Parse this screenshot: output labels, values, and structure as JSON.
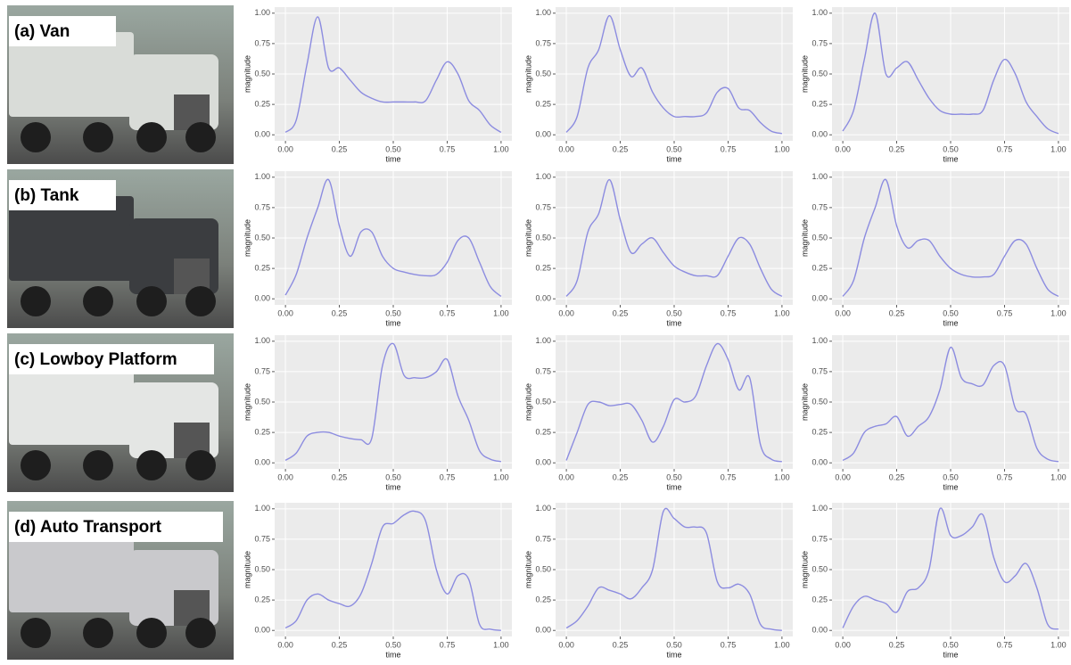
{
  "row_labels": [
    "(a) Van",
    "(b) Tank",
    "(c) Lowboy Platform",
    "(d) Auto Transport"
  ],
  "chart_data": [
    {
      "type": "line",
      "xlabel": "time",
      "ylabel": "magnitude",
      "color": "#8c8ce0",
      "xlim": [
        -0.05,
        1.05
      ],
      "ylim": [
        -0.05,
        1.05
      ],
      "xticks": [
        {
          "value": 0,
          "label": "0.00"
        },
        {
          "value": 0.25,
          "label": "0.25"
        },
        {
          "value": 0.5,
          "label": "0.50"
        },
        {
          "value": 0.75,
          "label": "0.75"
        },
        {
          "value": 1,
          "label": "1.00"
        }
      ],
      "yticks": [
        {
          "value": 0,
          "label": "0.00"
        },
        {
          "value": 0.25,
          "label": "0.25"
        },
        {
          "value": 0.5,
          "label": "0.50"
        },
        {
          "value": 0.75,
          "label": "0.75"
        },
        {
          "value": 1,
          "label": "1.00"
        }
      ],
      "x": [
        0,
        0.05,
        0.1,
        0.15,
        0.2,
        0.25,
        0.3,
        0.35,
        0.4,
        0.45,
        0.5,
        0.55,
        0.6,
        0.65,
        0.7,
        0.75,
        0.8,
        0.85,
        0.9,
        0.95,
        1
      ],
      "values": [
        0.02,
        0.12,
        0.58,
        0.97,
        0.55,
        0.55,
        0.45,
        0.35,
        0.3,
        0.27,
        0.27,
        0.27,
        0.27,
        0.28,
        0.45,
        0.6,
        0.5,
        0.28,
        0.2,
        0.08,
        0.02
      ]
    },
    {
      "type": "line",
      "xlabel": "time",
      "ylabel": "magnitude",
      "color": "#8c8ce0",
      "xlim": [
        -0.05,
        1.05
      ],
      "ylim": [
        -0.05,
        1.05
      ],
      "xticks": [
        {
          "value": 0,
          "label": "0.00"
        },
        {
          "value": 0.25,
          "label": "0.25"
        },
        {
          "value": 0.5,
          "label": "0.50"
        },
        {
          "value": 0.75,
          "label": "0.75"
        },
        {
          "value": 1,
          "label": "1.00"
        }
      ],
      "yticks": [
        {
          "value": 0,
          "label": "0.00"
        },
        {
          "value": 0.25,
          "label": "0.25"
        },
        {
          "value": 0.5,
          "label": "0.50"
        },
        {
          "value": 0.75,
          "label": "0.75"
        },
        {
          "value": 1,
          "label": "1.00"
        }
      ],
      "x": [
        0,
        0.05,
        0.1,
        0.15,
        0.2,
        0.25,
        0.3,
        0.35,
        0.4,
        0.45,
        0.5,
        0.55,
        0.6,
        0.65,
        0.7,
        0.75,
        0.8,
        0.85,
        0.9,
        0.95,
        1
      ],
      "values": [
        0.02,
        0.15,
        0.55,
        0.7,
        0.98,
        0.7,
        0.48,
        0.55,
        0.35,
        0.22,
        0.15,
        0.15,
        0.15,
        0.18,
        0.35,
        0.38,
        0.22,
        0.2,
        0.1,
        0.03,
        0.01
      ]
    },
    {
      "type": "line",
      "xlabel": "time",
      "ylabel": "magnitude",
      "color": "#8c8ce0",
      "xlim": [
        -0.05,
        1.05
      ],
      "ylim": [
        -0.05,
        1.05
      ],
      "xticks": [
        {
          "value": 0,
          "label": "0.00"
        },
        {
          "value": 0.25,
          "label": "0.25"
        },
        {
          "value": 0.5,
          "label": "0.50"
        },
        {
          "value": 0.75,
          "label": "0.75"
        },
        {
          "value": 1,
          "label": "1.00"
        }
      ],
      "yticks": [
        {
          "value": 0,
          "label": "0.00"
        },
        {
          "value": 0.25,
          "label": "0.25"
        },
        {
          "value": 0.5,
          "label": "0.50"
        },
        {
          "value": 0.75,
          "label": "0.75"
        },
        {
          "value": 1,
          "label": "1.00"
        }
      ],
      "x": [
        0,
        0.05,
        0.1,
        0.15,
        0.2,
        0.25,
        0.3,
        0.35,
        0.4,
        0.45,
        0.5,
        0.55,
        0.6,
        0.65,
        0.7,
        0.75,
        0.8,
        0.85,
        0.9,
        0.95,
        1
      ],
      "values": [
        0.03,
        0.2,
        0.62,
        1.0,
        0.5,
        0.55,
        0.6,
        0.45,
        0.3,
        0.2,
        0.17,
        0.17,
        0.17,
        0.2,
        0.45,
        0.62,
        0.5,
        0.27,
        0.15,
        0.05,
        0.01
      ]
    },
    {
      "type": "line",
      "xlabel": "time",
      "ylabel": "magnitude",
      "color": "#8c8ce0",
      "xlim": [
        -0.05,
        1.05
      ],
      "ylim": [
        -0.05,
        1.05
      ],
      "xticks": [
        {
          "value": 0,
          "label": "0.00"
        },
        {
          "value": 0.25,
          "label": "0.25"
        },
        {
          "value": 0.5,
          "label": "0.50"
        },
        {
          "value": 0.75,
          "label": "0.75"
        },
        {
          "value": 1,
          "label": "1.00"
        }
      ],
      "yticks": [
        {
          "value": 0,
          "label": "0.00"
        },
        {
          "value": 0.25,
          "label": "0.25"
        },
        {
          "value": 0.5,
          "label": "0.50"
        },
        {
          "value": 0.75,
          "label": "0.75"
        },
        {
          "value": 1,
          "label": "1.00"
        }
      ],
      "x": [
        0,
        0.05,
        0.1,
        0.15,
        0.2,
        0.25,
        0.3,
        0.35,
        0.4,
        0.45,
        0.5,
        0.55,
        0.6,
        0.65,
        0.7,
        0.75,
        0.8,
        0.85,
        0.9,
        0.95,
        1
      ],
      "values": [
        0.03,
        0.2,
        0.5,
        0.75,
        0.98,
        0.6,
        0.35,
        0.55,
        0.55,
        0.35,
        0.25,
        0.22,
        0.2,
        0.19,
        0.2,
        0.3,
        0.48,
        0.5,
        0.3,
        0.1,
        0.02
      ]
    },
    {
      "type": "line",
      "xlabel": "time",
      "ylabel": "magnitude",
      "color": "#8c8ce0",
      "xlim": [
        -0.05,
        1.05
      ],
      "ylim": [
        -0.05,
        1.05
      ],
      "xticks": [
        {
          "value": 0,
          "label": "0.00"
        },
        {
          "value": 0.25,
          "label": "0.25"
        },
        {
          "value": 0.5,
          "label": "0.50"
        },
        {
          "value": 0.75,
          "label": "0.75"
        },
        {
          "value": 1,
          "label": "1.00"
        }
      ],
      "yticks": [
        {
          "value": 0,
          "label": "0.00"
        },
        {
          "value": 0.25,
          "label": "0.25"
        },
        {
          "value": 0.5,
          "label": "0.50"
        },
        {
          "value": 0.75,
          "label": "0.75"
        },
        {
          "value": 1,
          "label": "1.00"
        }
      ],
      "x": [
        0,
        0.05,
        0.1,
        0.15,
        0.2,
        0.25,
        0.3,
        0.35,
        0.4,
        0.45,
        0.5,
        0.55,
        0.6,
        0.65,
        0.7,
        0.75,
        0.8,
        0.85,
        0.9,
        0.95,
        1
      ],
      "values": [
        0.02,
        0.15,
        0.55,
        0.7,
        0.98,
        0.65,
        0.38,
        0.45,
        0.5,
        0.38,
        0.27,
        0.22,
        0.19,
        0.19,
        0.19,
        0.35,
        0.5,
        0.45,
        0.25,
        0.08,
        0.02
      ]
    },
    {
      "type": "line",
      "xlabel": "time",
      "ylabel": "magnitude",
      "color": "#8c8ce0",
      "xlim": [
        -0.05,
        1.05
      ],
      "ylim": [
        -0.05,
        1.05
      ],
      "xticks": [
        {
          "value": 0,
          "label": "0.00"
        },
        {
          "value": 0.25,
          "label": "0.25"
        },
        {
          "value": 0.5,
          "label": "0.50"
        },
        {
          "value": 0.75,
          "label": "0.75"
        },
        {
          "value": 1,
          "label": "1.00"
        }
      ],
      "yticks": [
        {
          "value": 0,
          "label": "0.00"
        },
        {
          "value": 0.25,
          "label": "0.25"
        },
        {
          "value": 0.5,
          "label": "0.50"
        },
        {
          "value": 0.75,
          "label": "0.75"
        },
        {
          "value": 1,
          "label": "1.00"
        }
      ],
      "x": [
        0,
        0.05,
        0.1,
        0.15,
        0.2,
        0.25,
        0.3,
        0.35,
        0.4,
        0.45,
        0.5,
        0.55,
        0.6,
        0.65,
        0.7,
        0.75,
        0.8,
        0.85,
        0.9,
        0.95,
        1
      ],
      "values": [
        0.02,
        0.15,
        0.5,
        0.75,
        0.98,
        0.6,
        0.42,
        0.48,
        0.48,
        0.35,
        0.25,
        0.2,
        0.18,
        0.18,
        0.2,
        0.35,
        0.48,
        0.45,
        0.25,
        0.08,
        0.02
      ]
    },
    {
      "type": "line",
      "xlabel": "time",
      "ylabel": "magnitude",
      "color": "#8c8ce0",
      "xlim": [
        -0.05,
        1.05
      ],
      "ylim": [
        -0.05,
        1.05
      ],
      "xticks": [
        {
          "value": 0,
          "label": "0.00"
        },
        {
          "value": 0.25,
          "label": "0.25"
        },
        {
          "value": 0.5,
          "label": "0.50"
        },
        {
          "value": 0.75,
          "label": "0.75"
        },
        {
          "value": 1,
          "label": "1.00"
        }
      ],
      "yticks": [
        {
          "value": 0,
          "label": "0.00"
        },
        {
          "value": 0.25,
          "label": "0.25"
        },
        {
          "value": 0.5,
          "label": "0.50"
        },
        {
          "value": 0.75,
          "label": "0.75"
        },
        {
          "value": 1,
          "label": "1.00"
        }
      ],
      "x": [
        0,
        0.05,
        0.1,
        0.15,
        0.2,
        0.25,
        0.3,
        0.35,
        0.4,
        0.45,
        0.5,
        0.55,
        0.6,
        0.65,
        0.7,
        0.75,
        0.8,
        0.85,
        0.9,
        0.95,
        1
      ],
      "values": [
        0.02,
        0.08,
        0.22,
        0.25,
        0.25,
        0.22,
        0.2,
        0.19,
        0.2,
        0.8,
        0.98,
        0.72,
        0.7,
        0.7,
        0.75,
        0.85,
        0.55,
        0.35,
        0.1,
        0.03,
        0.01
      ]
    },
    {
      "type": "line",
      "xlabel": "time",
      "ylabel": "magnitude",
      "color": "#8c8ce0",
      "xlim": [
        -0.05,
        1.05
      ],
      "ylim": [
        -0.05,
        1.05
      ],
      "xticks": [
        {
          "value": 0,
          "label": "0.00"
        },
        {
          "value": 0.25,
          "label": "0.25"
        },
        {
          "value": 0.5,
          "label": "0.50"
        },
        {
          "value": 0.75,
          "label": "0.75"
        },
        {
          "value": 1,
          "label": "1.00"
        }
      ],
      "yticks": [
        {
          "value": 0,
          "label": "0.00"
        },
        {
          "value": 0.25,
          "label": "0.25"
        },
        {
          "value": 0.5,
          "label": "0.50"
        },
        {
          "value": 0.75,
          "label": "0.75"
        },
        {
          "value": 1,
          "label": "1.00"
        }
      ],
      "x": [
        0,
        0.05,
        0.1,
        0.15,
        0.2,
        0.25,
        0.3,
        0.35,
        0.4,
        0.45,
        0.5,
        0.55,
        0.6,
        0.65,
        0.7,
        0.75,
        0.8,
        0.85,
        0.9,
        0.95,
        1
      ],
      "values": [
        0.02,
        0.25,
        0.48,
        0.5,
        0.47,
        0.48,
        0.48,
        0.35,
        0.17,
        0.3,
        0.52,
        0.5,
        0.55,
        0.8,
        0.98,
        0.85,
        0.6,
        0.7,
        0.15,
        0.03,
        0.01
      ]
    },
    {
      "type": "line",
      "xlabel": "time",
      "ylabel": "magnitude",
      "color": "#8c8ce0",
      "xlim": [
        -0.05,
        1.05
      ],
      "ylim": [
        -0.05,
        1.05
      ],
      "xticks": [
        {
          "value": 0,
          "label": "0.00"
        },
        {
          "value": 0.25,
          "label": "0.25"
        },
        {
          "value": 0.5,
          "label": "0.50"
        },
        {
          "value": 0.75,
          "label": "0.75"
        },
        {
          "value": 1,
          "label": "1.00"
        }
      ],
      "yticks": [
        {
          "value": 0,
          "label": "0.00"
        },
        {
          "value": 0.25,
          "label": "0.25"
        },
        {
          "value": 0.5,
          "label": "0.50"
        },
        {
          "value": 0.75,
          "label": "0.75"
        },
        {
          "value": 1,
          "label": "1.00"
        }
      ],
      "x": [
        0,
        0.05,
        0.1,
        0.15,
        0.2,
        0.25,
        0.3,
        0.35,
        0.4,
        0.45,
        0.5,
        0.55,
        0.6,
        0.65,
        0.7,
        0.75,
        0.8,
        0.85,
        0.9,
        0.95,
        1
      ],
      "values": [
        0.02,
        0.08,
        0.25,
        0.3,
        0.32,
        0.38,
        0.22,
        0.3,
        0.38,
        0.6,
        0.95,
        0.7,
        0.65,
        0.64,
        0.8,
        0.8,
        0.45,
        0.4,
        0.12,
        0.03,
        0.01
      ]
    },
    {
      "type": "line",
      "xlabel": "time",
      "ylabel": "magnitude",
      "color": "#8c8ce0",
      "xlim": [
        -0.05,
        1.05
      ],
      "ylim": [
        -0.05,
        1.05
      ],
      "xticks": [
        {
          "value": 0,
          "label": "0.00"
        },
        {
          "value": 0.25,
          "label": "0.25"
        },
        {
          "value": 0.5,
          "label": "0.50"
        },
        {
          "value": 0.75,
          "label": "0.75"
        },
        {
          "value": 1,
          "label": "1.00"
        }
      ],
      "yticks": [
        {
          "value": 0,
          "label": "0.00"
        },
        {
          "value": 0.25,
          "label": "0.25"
        },
        {
          "value": 0.5,
          "label": "0.50"
        },
        {
          "value": 0.75,
          "label": "0.75"
        },
        {
          "value": 1,
          "label": "1.00"
        }
      ],
      "x": [
        0,
        0.05,
        0.1,
        0.15,
        0.2,
        0.25,
        0.3,
        0.35,
        0.4,
        0.45,
        0.5,
        0.55,
        0.6,
        0.65,
        0.7,
        0.75,
        0.8,
        0.85,
        0.9,
        0.95,
        1
      ],
      "values": [
        0.02,
        0.08,
        0.25,
        0.3,
        0.25,
        0.22,
        0.2,
        0.3,
        0.55,
        0.85,
        0.88,
        0.95,
        0.98,
        0.9,
        0.5,
        0.3,
        0.45,
        0.42,
        0.05,
        0.01,
        0
      ]
    },
    {
      "type": "line",
      "xlabel": "time",
      "ylabel": "magnitude",
      "color": "#8c8ce0",
      "xlim": [
        -0.05,
        1.05
      ],
      "ylim": [
        -0.05,
        1.05
      ],
      "xticks": [
        {
          "value": 0,
          "label": "0.00"
        },
        {
          "value": 0.25,
          "label": "0.25"
        },
        {
          "value": 0.5,
          "label": "0.50"
        },
        {
          "value": 0.75,
          "label": "0.75"
        },
        {
          "value": 1,
          "label": "1.00"
        }
      ],
      "yticks": [
        {
          "value": 0,
          "label": "0.00"
        },
        {
          "value": 0.25,
          "label": "0.25"
        },
        {
          "value": 0.5,
          "label": "0.50"
        },
        {
          "value": 0.75,
          "label": "0.75"
        },
        {
          "value": 1,
          "label": "1.00"
        }
      ],
      "x": [
        0,
        0.05,
        0.1,
        0.15,
        0.2,
        0.25,
        0.3,
        0.35,
        0.4,
        0.45,
        0.5,
        0.55,
        0.6,
        0.65,
        0.7,
        0.75,
        0.8,
        0.85,
        0.9,
        0.95,
        1
      ],
      "values": [
        0.02,
        0.08,
        0.2,
        0.35,
        0.33,
        0.3,
        0.26,
        0.35,
        0.5,
        0.98,
        0.92,
        0.85,
        0.85,
        0.8,
        0.4,
        0.35,
        0.38,
        0.3,
        0.05,
        0.01,
        0
      ]
    },
    {
      "type": "line",
      "xlabel": "time",
      "ylabel": "magnitude",
      "color": "#8c8ce0",
      "xlim": [
        -0.05,
        1.05
      ],
      "ylim": [
        -0.05,
        1.05
      ],
      "xticks": [
        {
          "value": 0,
          "label": "0.00"
        },
        {
          "value": 0.25,
          "label": "0.25"
        },
        {
          "value": 0.5,
          "label": "0.50"
        },
        {
          "value": 0.75,
          "label": "0.75"
        },
        {
          "value": 1,
          "label": "1.00"
        }
      ],
      "yticks": [
        {
          "value": 0,
          "label": "0.00"
        },
        {
          "value": 0.25,
          "label": "0.25"
        },
        {
          "value": 0.5,
          "label": "0.50"
        },
        {
          "value": 0.75,
          "label": "0.75"
        },
        {
          "value": 1,
          "label": "1.00"
        }
      ],
      "x": [
        0,
        0.05,
        0.1,
        0.15,
        0.2,
        0.25,
        0.3,
        0.35,
        0.4,
        0.45,
        0.5,
        0.55,
        0.6,
        0.65,
        0.7,
        0.75,
        0.8,
        0.85,
        0.9,
        0.95,
        1
      ],
      "values": [
        0.02,
        0.2,
        0.28,
        0.25,
        0.22,
        0.15,
        0.32,
        0.35,
        0.5,
        1.0,
        0.78,
        0.78,
        0.85,
        0.95,
        0.6,
        0.4,
        0.45,
        0.55,
        0.35,
        0.05,
        0.01
      ]
    }
  ]
}
